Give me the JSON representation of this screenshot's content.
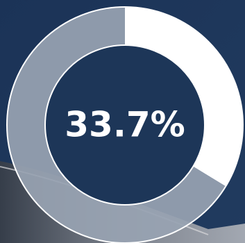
{
  "chart_data": {
    "type": "donut",
    "values": [
      33.7,
      66.3
    ],
    "value_labels": [
      "33.7%",
      null
    ],
    "colors": [
      "#ffffff",
      "#98a3b2"
    ]
  }
}
